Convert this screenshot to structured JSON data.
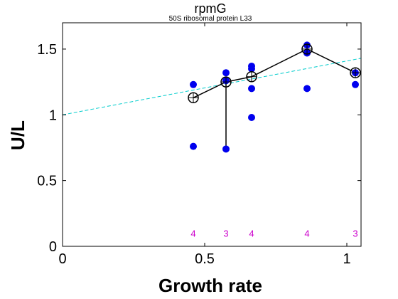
{
  "chart_data": {
    "type": "scatter",
    "title": "rpmG",
    "subtitle": "50S ribosomal protein L33",
    "xlabel": "Growth rate",
    "ylabel": "U/L",
    "xlim": [
      0,
      1.05
    ],
    "ylim": [
      0,
      1.7
    ],
    "xticks": [
      0,
      0.5,
      1
    ],
    "xtick_labels": [
      "0",
      "0.5",
      "1"
    ],
    "yticks": [
      0,
      0.5,
      1,
      1.5
    ],
    "ytick_labels": [
      "0",
      "0.5",
      "1",
      "1.5"
    ],
    "grid": false,
    "colors": {
      "points": "#0000ee",
      "fit_line": "#00cccc",
      "mean_line": "#000000",
      "counts": "#cc00cc"
    },
    "replicate_points": [
      {
        "x": 0.46,
        "y": 1.23
      },
      {
        "x": 0.46,
        "y": 0.76
      },
      {
        "x": 0.575,
        "y": 1.32
      },
      {
        "x": 0.575,
        "y": 1.26
      },
      {
        "x": 0.575,
        "y": 0.74
      },
      {
        "x": 0.665,
        "y": 1.37
      },
      {
        "x": 0.665,
        "y": 1.35
      },
      {
        "x": 0.665,
        "y": 1.2
      },
      {
        "x": 0.665,
        "y": 0.98
      },
      {
        "x": 0.86,
        "y": 1.53
      },
      {
        "x": 0.86,
        "y": 1.47
      },
      {
        "x": 0.86,
        "y": 1.2
      },
      {
        "x": 1.03,
        "y": 1.32
      },
      {
        "x": 1.03,
        "y": 1.23
      }
    ],
    "mean_points": [
      {
        "x": 0.46,
        "y": 1.13
      },
      {
        "x": 0.575,
        "y": 1.25
      },
      {
        "x": 0.665,
        "y": 1.29
      },
      {
        "x": 0.86,
        "y": 1.5
      },
      {
        "x": 1.03,
        "y": 1.32
      }
    ],
    "error_bars": [
      {
        "x": 0.575,
        "low": 0.74,
        "high": 1.26
      }
    ],
    "fit_line": {
      "x": [
        0,
        1.05
      ],
      "y": [
        1.0,
        1.43
      ]
    },
    "counts": [
      {
        "x": 0.46,
        "label": "4"
      },
      {
        "x": 0.575,
        "label": "3"
      },
      {
        "x": 0.665,
        "label": "4"
      },
      {
        "x": 0.86,
        "label": "4"
      },
      {
        "x": 1.03,
        "label": "3"
      }
    ],
    "counts_y": 0.1
  }
}
